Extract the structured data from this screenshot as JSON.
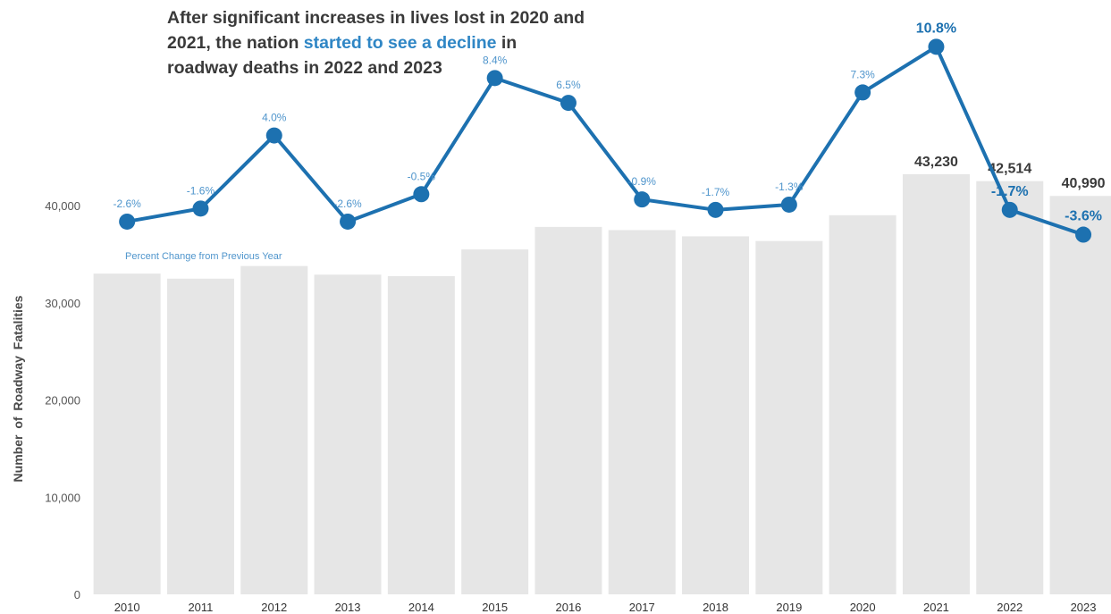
{
  "title": {
    "part1": "After significant increases in lives lost in 2020 and 2021, the nation ",
    "highlight": "started to see a decline",
    "part2": " in roadway deaths in 2022 and 2023"
  },
  "ylabel": "Number of Roadway Fatalities",
  "line_annotation": "Percent Change from Previous Year",
  "colors": {
    "bar": "#e6e6e6",
    "line": "#1d71b0",
    "label": "#4f95cc",
    "title_highlight": "#2f86c5",
    "text": "#3a3a3a"
  },
  "chart_data": {
    "type": "bar",
    "categories": [
      "2010",
      "2011",
      "2012",
      "2013",
      "2014",
      "2015",
      "2016",
      "2017",
      "2018",
      "2019",
      "2020",
      "2021",
      "2022",
      "2023"
    ],
    "values": [
      32999,
      32479,
      33782,
      32893,
      32744,
      35484,
      37806,
      37473,
      36835,
      36355,
      39007,
      43230,
      42514,
      40990
    ],
    "bar_labels": [
      "",
      "",
      "",
      "",
      "",
      "",
      "",
      "",
      "",
      "",
      "",
      "43,230",
      "42,514",
      "40,990"
    ],
    "ylim": [
      0,
      45000
    ],
    "yticks": [
      0,
      10000,
      20000,
      30000,
      40000
    ],
    "ytick_labels": [
      "0",
      "10,000",
      "20,000",
      "30,000",
      "40,000"
    ],
    "ylabel": "Number of Roadway Fatalities",
    "xlabel": "",
    "grid": false,
    "line_series": {
      "name": "Percent Change from Previous Year",
      "values": [
        -2.6,
        -1.6,
        4.0,
        -2.6,
        -0.5,
        8.4,
        6.5,
        -0.9,
        -1.7,
        -1.3,
        7.3,
        10.8,
        -1.7,
        -3.6
      ],
      "labels": [
        "-2.6%",
        "-1.6%",
        "4.0%",
        "-2.6%",
        "-0.5%",
        "8.4%",
        "6.5%",
        "-0.9%",
        "-1.7%",
        "-1.3%",
        "7.3%",
        "10.8%",
        "-1.7%",
        "-3.6%"
      ]
    }
  }
}
